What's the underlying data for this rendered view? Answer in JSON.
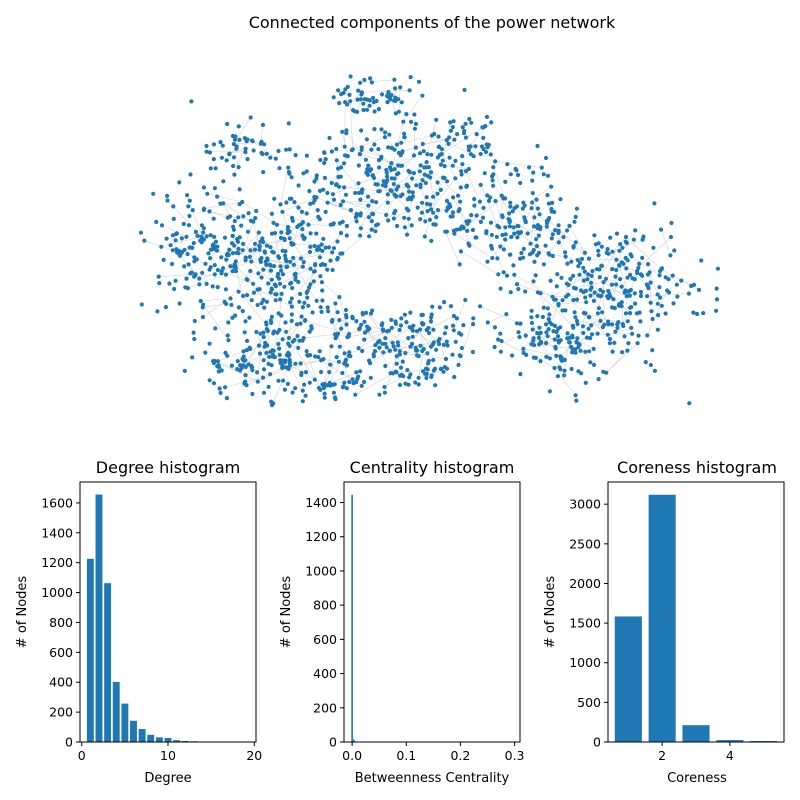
{
  "figure": {
    "title": "Connected components of the power network"
  },
  "colors": {
    "primary": "#1f77b4",
    "edge": "#d3d3d3",
    "axis": "#000000",
    "background": "#ffffff"
  },
  "chart_data": [
    {
      "type": "network",
      "title": "Connected components of the power network",
      "node_color": "#1f77b4",
      "edge_color": "#d3d3d3",
      "axes_visible": false
    },
    {
      "type": "bar",
      "title": "Degree histogram",
      "xlabel": "Degree",
      "ylabel": "# of Nodes",
      "xlim": [
        -0.2,
        20.2
      ],
      "ylim": [
        0,
        1740
      ],
      "xticks": [
        0,
        10,
        20
      ],
      "yticks": [
        0,
        200,
        400,
        600,
        800,
        1000,
        1200,
        1400,
        1600
      ],
      "x": [
        1,
        2,
        3,
        4,
        5,
        6,
        7,
        8,
        9,
        10,
        11,
        12,
        13,
        14,
        15,
        16,
        19
      ],
      "values": [
        1226,
        1656,
        1063,
        402,
        257,
        142,
        87,
        48,
        31,
        27,
        12,
        7,
        5,
        3,
        2,
        1,
        1
      ],
      "bar_width": 0.8,
      "grid": false
    },
    {
      "type": "bar",
      "title": "Centrality histogram",
      "xlabel": "Betweenness Centrality",
      "ylabel": "# of Nodes",
      "xlim": [
        -0.015,
        0.31
      ],
      "ylim": [
        0,
        1520
      ],
      "xticks": [
        0.0,
        0.1,
        0.2,
        0.3
      ],
      "xtick_labels": [
        "0.0",
        "0.1",
        "0.2",
        "0.3"
      ],
      "yticks": [
        0,
        200,
        400,
        600,
        800,
        1000,
        1200,
        1400
      ],
      "x": [
        0.0,
        0.003,
        0.006,
        0.009,
        0.012
      ],
      "values": [
        1445,
        15,
        4,
        2,
        1
      ],
      "bar_width": 0.003,
      "grid": false
    },
    {
      "type": "bar",
      "title": "Coreness histogram",
      "xlabel": "Coreness",
      "ylabel": "# of Nodes",
      "xlim": [
        0.4,
        5.6
      ],
      "ylim": [
        0,
        3280
      ],
      "xticks": [
        2,
        4
      ],
      "yticks": [
        0,
        500,
        1000,
        1500,
        2000,
        2500,
        3000
      ],
      "x": [
        1,
        2,
        3,
        4,
        5
      ],
      "values": [
        1584,
        3119,
        212,
        24,
        12
      ],
      "bar_width": 0.8,
      "grid": false
    }
  ]
}
